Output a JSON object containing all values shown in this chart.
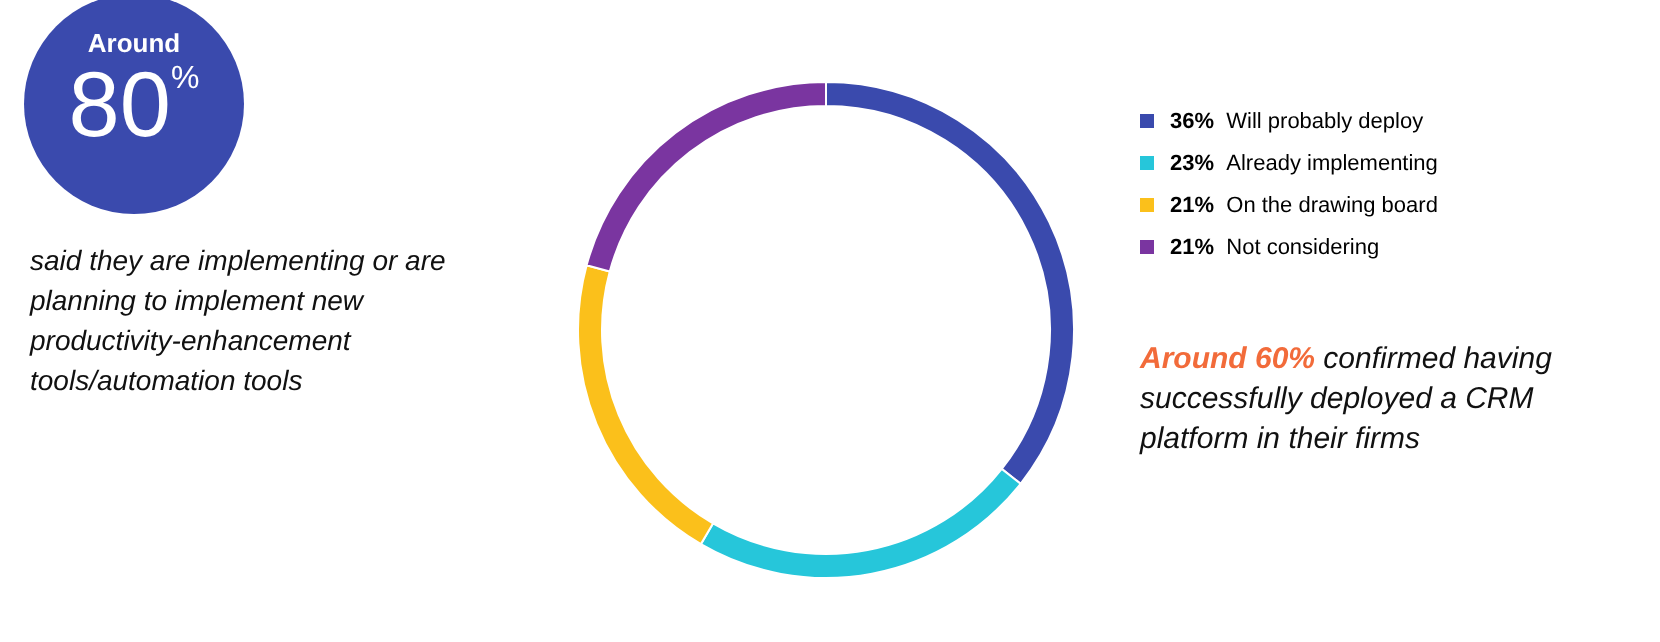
{
  "chart_data": {
    "type": "donut",
    "categories": [
      "36% Will probably deploy",
      "23% Already implementing",
      "21% On the drawing board",
      "21% Not considering"
    ],
    "values": [
      36,
      23,
      21,
      21
    ],
    "colors": [
      "#3a4aad",
      "#26c6da",
      "#fbc01b",
      "#7a35a0"
    ],
    "legend": "right",
    "annotations": [
      "Around 80%",
      "said they are implementing or are planning to implement new productivity-enhancement tools/automation tools",
      "Around 60% confirmed having successfully deployed a CRM platform in their firms"
    ]
  }
}
